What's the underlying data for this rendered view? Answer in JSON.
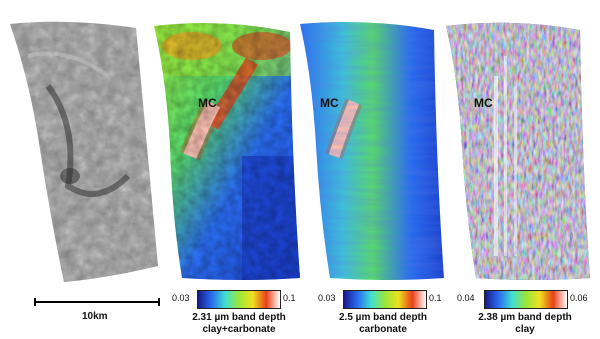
{
  "panels": [
    {
      "name": "grayscale-image",
      "label": ""
    },
    {
      "name": "clay-carbonate-map",
      "label": "MC"
    },
    {
      "name": "carbonate-map",
      "label": "MC"
    },
    {
      "name": "clay-map",
      "label": "MC"
    }
  ],
  "scale": {
    "label": "10km"
  },
  "colorbars": [
    {
      "min": "0.03",
      "max": "0.1",
      "title": "2.31 µm band depth",
      "subtitle": "clay+carbonate"
    },
    {
      "min": "0.03",
      "max": "0.1",
      "title": "2.5 µm band depth",
      "subtitle": "carbonate"
    },
    {
      "min": "0.04",
      "max": "0.06",
      "title": "2.38 µm band depth",
      "subtitle": "clay"
    }
  ],
  "colors": {
    "low": "#1a1a8c",
    "mid_low": "#2a6cf0",
    "mid": "#40e0d0",
    "mid_high": "#9ae63a",
    "high": "#f0e020",
    "very_high": "#e8401a",
    "max": "#ffffff"
  }
}
